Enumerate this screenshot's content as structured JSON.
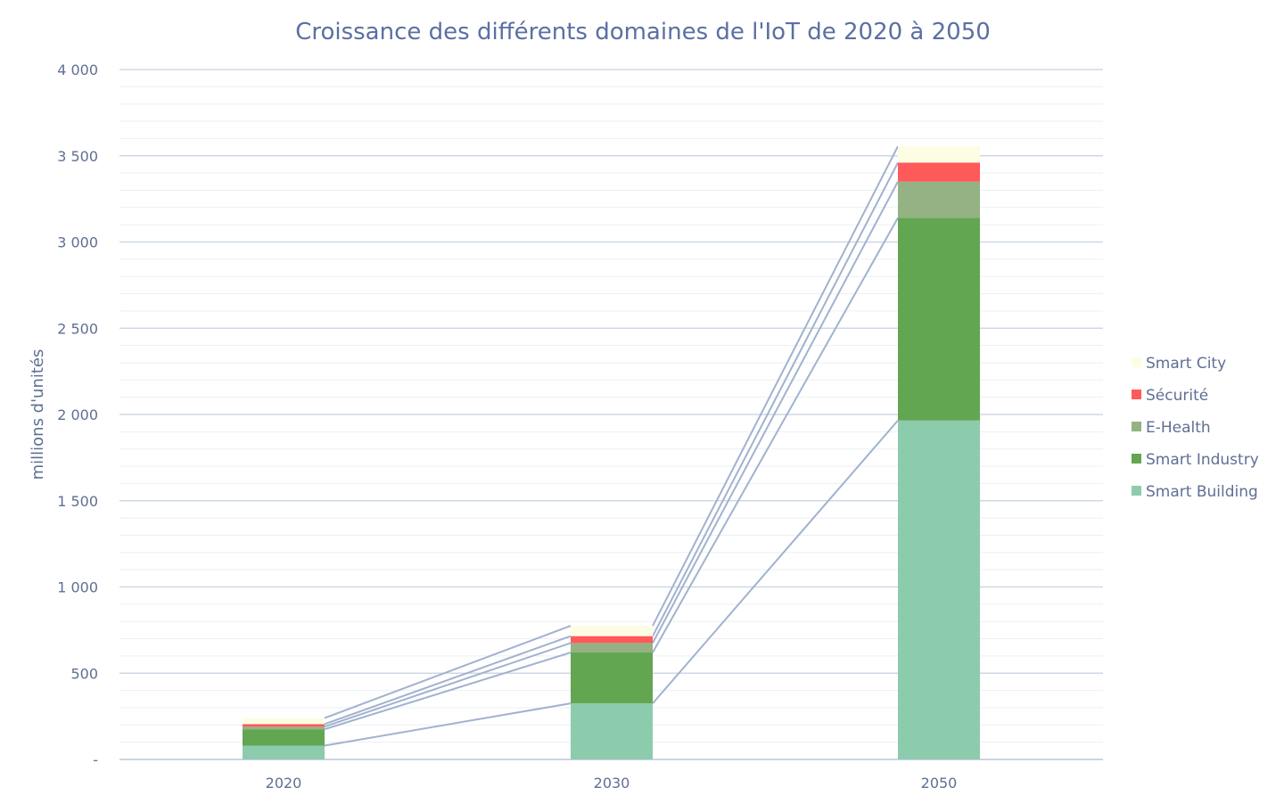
{
  "chart_data": {
    "type": "bar",
    "stacked": true,
    "title": "Croissance des différents domaines de l'IoT de 2020 à 2050",
    "xlabel": "",
    "ylabel": "millions d'unités",
    "categories": [
      "2020",
      "2030",
      "2050"
    ],
    "ylim": [
      0,
      4000
    ],
    "yticks": [
      0,
      500,
      1000,
      1500,
      2000,
      2500,
      3000,
      3500,
      4000
    ],
    "ytick_labels": [
      "-",
      "500",
      "1 000",
      "1 500",
      "2 000",
      "2 500",
      "3 000",
      "3 500",
      "4 000"
    ],
    "grid": true,
    "series_lines": true,
    "legend_position": "right",
    "series": [
      {
        "name": "Smart Building",
        "color": "#8dcbad",
        "values": [
          80,
          325,
          1965
        ]
      },
      {
        "name": "Smart Industry",
        "color": "#62a651",
        "values": [
          95,
          295,
          1175
        ]
      },
      {
        "name": "E-Health",
        "color": "#94b283",
        "values": [
          15,
          55,
          210
        ]
      },
      {
        "name": "Sécurité",
        "color": "#ff5a5a",
        "values": [
          15,
          40,
          110
        ]
      },
      {
        "name": "Smart City",
        "color": "#fdfde4",
        "values": [
          35,
          60,
          95
        ]
      }
    ]
  }
}
